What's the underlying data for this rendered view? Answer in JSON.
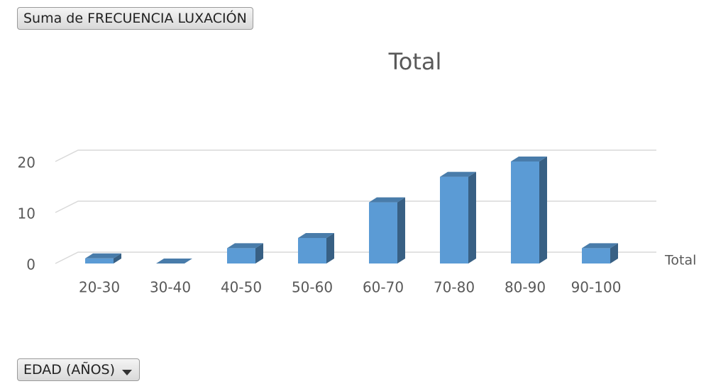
{
  "header": {
    "value_button": "Suma de FRECUENCIA LUXACIÓN",
    "axis_button": "EDAD (AÑOS)"
  },
  "chart_data": {
    "type": "bar3d",
    "title": "Total",
    "categories": [
      "20-30",
      "30-40",
      "40-50",
      "50-60",
      "60-70",
      "70-80",
      "80-90",
      "90-100"
    ],
    "series": [
      {
        "name": "Total",
        "color": "#5b9bd5",
        "values": [
          1,
          0,
          3,
          5,
          12,
          17,
          20,
          3
        ]
      }
    ],
    "ylim": [
      0,
      20
    ],
    "yticks": [
      0,
      10,
      20
    ],
    "grid": true,
    "legend": "right"
  }
}
